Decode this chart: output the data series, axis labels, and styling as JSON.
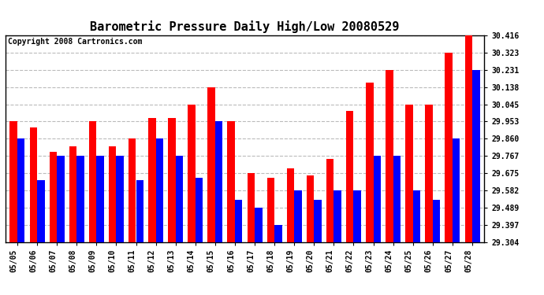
{
  "title": "Barometric Pressure Daily High/Low 20080529",
  "copyright": "Copyright 2008 Cartronics.com",
  "dates": [
    "05/05",
    "05/06",
    "05/07",
    "05/08",
    "05/09",
    "05/10",
    "05/11",
    "05/12",
    "05/13",
    "05/14",
    "05/15",
    "05/16",
    "05/17",
    "05/18",
    "05/19",
    "05/20",
    "05/21",
    "05/22",
    "05/23",
    "05/24",
    "05/25",
    "05/26",
    "05/27",
    "05/28"
  ],
  "highs": [
    29.953,
    29.92,
    29.79,
    29.82,
    29.953,
    29.82,
    29.86,
    29.97,
    29.97,
    30.045,
    30.138,
    29.953,
    29.675,
    29.65,
    29.7,
    29.66,
    29.75,
    30.01,
    30.16,
    30.231,
    30.045,
    30.045,
    30.323,
    30.416
  ],
  "lows": [
    29.86,
    29.635,
    29.767,
    29.767,
    29.767,
    29.767,
    29.635,
    29.86,
    29.767,
    29.65,
    29.953,
    29.53,
    29.489,
    29.397,
    29.582,
    29.53,
    29.582,
    29.582,
    29.767,
    29.767,
    29.582,
    29.53,
    29.86,
    30.231
  ],
  "ylim_min": 29.304,
  "ylim_max": 30.416,
  "yticks": [
    29.304,
    29.397,
    29.489,
    29.582,
    29.675,
    29.767,
    29.86,
    29.953,
    30.045,
    30.138,
    30.231,
    30.323,
    30.416
  ],
  "bar_color_high": "#FF0000",
  "bar_color_low": "#0000FF",
  "background_color": "#FFFFFF",
  "plot_bg_color": "#FFFFFF",
  "grid_color": "#BBBBBB",
  "title_fontsize": 11,
  "copyright_fontsize": 7,
  "tick_fontsize": 7,
  "bar_width": 0.38
}
